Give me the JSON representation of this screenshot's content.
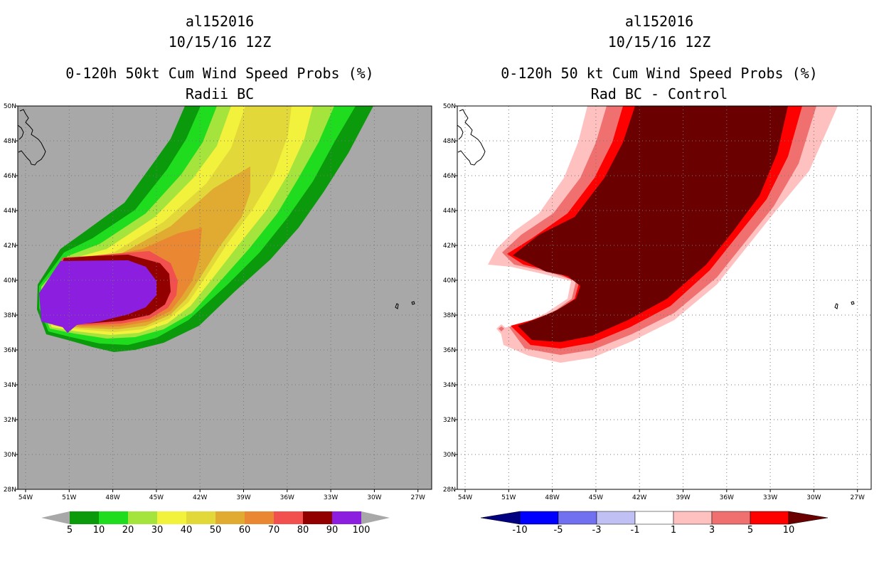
{
  "left_panel": {
    "storm_id": "al152016",
    "datetime": "10/15/16 12Z",
    "title": "0-120h 50kt Cum Wind Speed Probs (%)",
    "subtitle": "Radii BC",
    "background_color": "#a8a8a8",
    "colorbar": {
      "labels": [
        "5",
        "10",
        "20",
        "30",
        "40",
        "50",
        "60",
        "70",
        "80",
        "90",
        "100"
      ],
      "colors": [
        "#a8a8a8",
        "#0b9a0b",
        "#1fdc1f",
        "#a4e43c",
        "#f2f23c",
        "#e3d83a",
        "#e0ab30",
        "#ea8732",
        "#f24f4f",
        "#930000",
        "#8c1ee0",
        "#a8a8a8"
      ]
    }
  },
  "right_panel": {
    "storm_id": "al152016",
    "datetime": "10/15/16 12Z",
    "title": "0-120h 50 kt Cum Wind Speed Probs (%)",
    "subtitle": "Rad BC - Control",
    "background_color": "#ffffff",
    "colorbar": {
      "labels": [
        "-10",
        "-5",
        "-3",
        "-1",
        "1",
        "3",
        "5",
        "10"
      ],
      "colors": [
        "#000080",
        "#0000ff",
        "#7070f0",
        "#c0c0f4",
        "#ffffff",
        "#ffc0c0",
        "#f07070",
        "#ff0000",
        "#6a0000"
      ]
    }
  },
  "axes": {
    "lat_labels": [
      "28N",
      "30N",
      "32N",
      "34N",
      "36N",
      "38N",
      "40N",
      "42N",
      "44N",
      "46N",
      "48N",
      "50N"
    ],
    "lon_labels": [
      "54W",
      "51W",
      "48W",
      "45W",
      "42W",
      "39W",
      "36W",
      "33W",
      "30W",
      "27W"
    ]
  }
}
